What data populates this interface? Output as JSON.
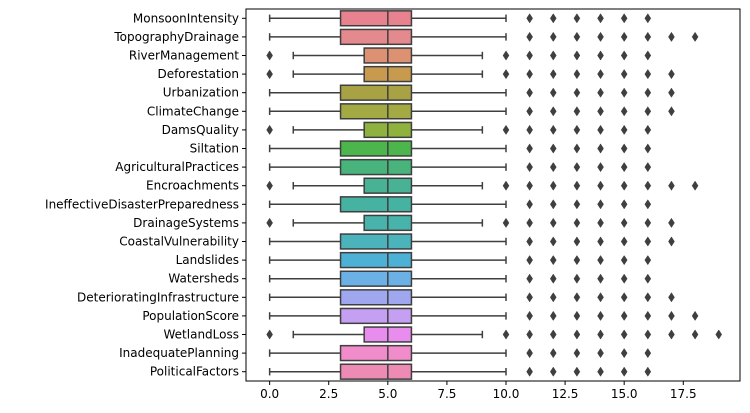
{
  "chart_data": {
    "type": "boxplot",
    "orientation": "horizontal",
    "title": "",
    "xlabel": "",
    "ylabel": "",
    "xlim": [
      -1.0,
      19.9
    ],
    "xticks": [
      0.0,
      2.5,
      5.0,
      7.5,
      10.0,
      12.5,
      15.0,
      17.5
    ],
    "xtick_labels": [
      "0.0",
      "2.5",
      "5.0",
      "7.5",
      "10.0",
      "12.5",
      "15.0",
      "17.5"
    ],
    "grid": false,
    "legend": "none",
    "series": [
      {
        "name": "MonsoonIntensity",
        "color": "#e8828e",
        "whisker_low": 0,
        "q1": 3,
        "median": 5,
        "q3": 6,
        "whisker_high": 10,
        "outliers": [
          11,
          12,
          13,
          14,
          15,
          16
        ]
      },
      {
        "name": "TopographyDrainage",
        "color": "#e4898d",
        "whisker_low": 0,
        "q1": 3,
        "median": 5,
        "q3": 6,
        "whisker_high": 10,
        "outliers": [
          11,
          12,
          13,
          14,
          15,
          16,
          17,
          18
        ]
      },
      {
        "name": "RiverManagement",
        "color": "#dd9173",
        "whisker_low": 1,
        "q1": 4,
        "median": 5,
        "q3": 6,
        "whisker_high": 9,
        "outliers": [
          0,
          10,
          11,
          12,
          13,
          14,
          15,
          16
        ]
      },
      {
        "name": "Deforestation",
        "color": "#c79a4e",
        "whisker_low": 1,
        "q1": 4,
        "median": 5,
        "q3": 6,
        "whisker_high": 9,
        "outliers": [
          0,
          10,
          11,
          12,
          13,
          14,
          15,
          16,
          17
        ]
      },
      {
        "name": "Urbanization",
        "color": "#a8a245",
        "whisker_low": 0,
        "q1": 3,
        "median": 5,
        "q3": 6,
        "whisker_high": 10,
        "outliers": [
          11,
          12,
          13,
          14,
          15,
          16,
          17
        ]
      },
      {
        "name": "ClimateChange",
        "color": "#a3aa43",
        "whisker_low": 0,
        "q1": 3,
        "median": 5,
        "q3": 6,
        "whisker_high": 10,
        "outliers": [
          11,
          12,
          13,
          14,
          15,
          16,
          17
        ]
      },
      {
        "name": "DamsQuality",
        "color": "#8fb13e",
        "whisker_low": 1,
        "q1": 4,
        "median": 5,
        "q3": 6,
        "whisker_high": 9,
        "outliers": [
          0,
          10,
          11,
          12,
          13,
          14,
          15,
          16
        ]
      },
      {
        "name": "Siltation",
        "color": "#4cb64c",
        "whisker_low": 0,
        "q1": 3,
        "median": 5,
        "q3": 6,
        "whisker_high": 10,
        "outliers": [
          11,
          12,
          13,
          14,
          15,
          16
        ]
      },
      {
        "name": "AgriculturalPractices",
        "color": "#48b37a",
        "whisker_low": 0,
        "q1": 3,
        "median": 5,
        "q3": 6,
        "whisker_high": 10,
        "outliers": [
          11,
          12,
          13,
          14,
          15,
          16
        ]
      },
      {
        "name": "Encroachments",
        "color": "#47b394",
        "whisker_low": 1,
        "q1": 4,
        "median": 5,
        "q3": 6,
        "whisker_high": 9,
        "outliers": [
          0,
          10,
          11,
          12,
          13,
          14,
          15,
          16,
          17,
          18
        ]
      },
      {
        "name": "IneffectiveDisasterPreparedness",
        "color": "#46b2a2",
        "whisker_low": 0,
        "q1": 3,
        "median": 5,
        "q3": 6,
        "whisker_high": 10,
        "outliers": [
          11,
          12,
          13,
          14,
          15,
          16
        ]
      },
      {
        "name": "DrainageSystems",
        "color": "#48b3ab",
        "whisker_low": 1,
        "q1": 4,
        "median": 5,
        "q3": 6,
        "whisker_high": 9,
        "outliers": [
          0,
          10,
          11,
          12,
          13,
          14,
          15,
          16,
          17
        ]
      },
      {
        "name": "CoastalVulnerability",
        "color": "#4ab3bc",
        "whisker_low": 0,
        "q1": 3,
        "median": 5,
        "q3": 6,
        "whisker_high": 10,
        "outliers": [
          11,
          12,
          13,
          14,
          15,
          16,
          17
        ]
      },
      {
        "name": "Landslides",
        "color": "#4db1d6",
        "whisker_low": 0,
        "q1": 3,
        "median": 5,
        "q3": 6,
        "whisker_high": 10,
        "outliers": [
          11,
          12,
          13,
          14,
          15,
          16
        ]
      },
      {
        "name": "Watersheds",
        "color": "#6cb1e6",
        "whisker_low": 0,
        "q1": 3,
        "median": 5,
        "q3": 6,
        "whisker_high": 10,
        "outliers": [
          11,
          12,
          13,
          14,
          15,
          16
        ]
      },
      {
        "name": "DeterioratingInfrastructure",
        "color": "#9fa8ef",
        "whisker_low": 0,
        "q1": 3,
        "median": 5,
        "q3": 6,
        "whisker_high": 10,
        "outliers": [
          11,
          12,
          13,
          14,
          15,
          16,
          17
        ]
      },
      {
        "name": "PopulationScore",
        "color": "#c59ff2",
        "whisker_low": 0,
        "q1": 3,
        "median": 5,
        "q3": 6,
        "whisker_high": 10,
        "outliers": [
          11,
          12,
          13,
          14,
          15,
          16,
          17,
          18
        ]
      },
      {
        "name": "WetlandLoss",
        "color": "#e88cee",
        "whisker_low": 1,
        "q1": 4,
        "median": 5,
        "q3": 6,
        "whisker_high": 9,
        "outliers": [
          0,
          10,
          11,
          12,
          13,
          14,
          15,
          16,
          17,
          18,
          19
        ]
      },
      {
        "name": "InadequatePlanning",
        "color": "#ef8cc9",
        "whisker_low": 0,
        "q1": 3,
        "median": 5,
        "q3": 6,
        "whisker_high": 10,
        "outliers": [
          11,
          12,
          13,
          14,
          15,
          16
        ]
      },
      {
        "name": "PoliticalFactors",
        "color": "#ee8bb4",
        "whisker_low": 0,
        "q1": 3,
        "median": 5,
        "q3": 6,
        "whisker_high": 10,
        "outliers": [
          11,
          12,
          13,
          14,
          15,
          16
        ]
      }
    ]
  }
}
